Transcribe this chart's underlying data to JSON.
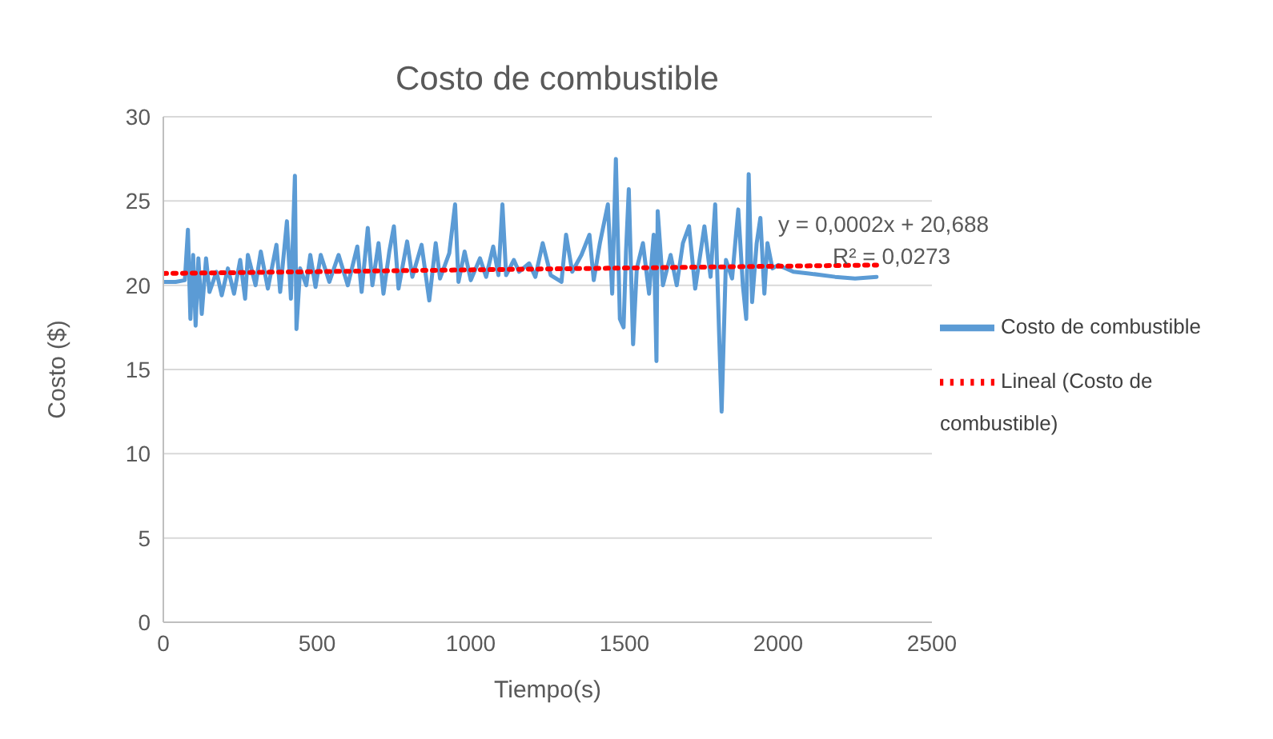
{
  "chart_data": {
    "type": "line",
    "title": "Costo de combustible",
    "xlabel": "Tiempo(s)",
    "ylabel": "Costo ($)",
    "xlim": [
      0,
      2500
    ],
    "xticks": [
      0,
      500,
      1000,
      1500,
      2000,
      2500
    ],
    "ylim": [
      0,
      30
    ],
    "yticks": [
      0,
      5,
      10,
      15,
      20,
      25,
      30
    ],
    "grid": "y",
    "legend": "right",
    "marker": "none",
    "annotations": [
      "y = 0,0002x + 20,688",
      "R² = 0,0273"
    ],
    "series": [
      {
        "name": "Costo de combustible",
        "color": "#5b9bd5",
        "line_style": "solid",
        "x": [
          0,
          40,
          70,
          80,
          88,
          97,
          105,
          114,
          125,
          139,
          150,
          173,
          190,
          210,
          230,
          250,
          266,
          275,
          300,
          317,
          340,
          368,
          380,
          402,
          415,
          428,
          433,
          445,
          465,
          478,
          495,
          512,
          540,
          570,
          600,
          631,
          645,
          665,
          680,
          700,
          716,
          735,
          750,
          765,
          793,
          810,
          840,
          865,
          886,
          900,
          930,
          949,
          960,
          980,
          1000,
          1030,
          1050,
          1073,
          1090,
          1103,
          1115,
          1140,
          1157,
          1190,
          1210,
          1234,
          1260,
          1295,
          1310,
          1330,
          1360,
          1386,
          1400,
          1420,
          1446,
          1460,
          1472,
          1485,
          1497,
          1505,
          1514,
          1528,
          1540,
          1560,
          1580,
          1595,
          1604,
          1608,
          1625,
          1650,
          1670,
          1690,
          1710,
          1730,
          1760,
          1780,
          1795,
          1808,
          1816,
          1830,
          1850,
          1870,
          1885,
          1896,
          1904,
          1915,
          1930,
          1942,
          1955,
          1965,
          1981,
          2000,
          2049,
          2100,
          2185,
          2250,
          2320
        ],
        "values": [
          20.2,
          20.2,
          20.3,
          23.3,
          18.0,
          21.8,
          17.6,
          21.6,
          18.3,
          21.6,
          19.6,
          20.8,
          19.4,
          21.0,
          19.5,
          21.5,
          19.2,
          21.8,
          20.0,
          22.0,
          19.8,
          22.4,
          19.6,
          23.8,
          19.2,
          26.5,
          17.4,
          21.0,
          20.0,
          21.8,
          19.9,
          21.8,
          20.2,
          21.8,
          20.0,
          22.3,
          19.6,
          23.4,
          20.0,
          22.5,
          19.5,
          22.0,
          23.5,
          19.8,
          22.6,
          20.5,
          22.4,
          19.1,
          22.5,
          20.4,
          21.9,
          24.8,
          20.2,
          22.0,
          20.3,
          21.6,
          20.5,
          22.3,
          20.6,
          24.8,
          20.6,
          21.5,
          20.8,
          21.3,
          20.5,
          22.5,
          20.6,
          20.2,
          23.0,
          20.8,
          21.8,
          23.0,
          20.3,
          22.5,
          24.8,
          19.5,
          27.5,
          18.0,
          17.5,
          22.0,
          25.7,
          16.5,
          21.0,
          22.5,
          19.5,
          23.0,
          15.5,
          24.4,
          20.0,
          21.8,
          20.0,
          22.5,
          23.5,
          19.8,
          23.5,
          20.5,
          24.8,
          17.0,
          12.5,
          21.5,
          20.4,
          24.5,
          20.0,
          18.0,
          26.6,
          19.0,
          22.5,
          24.0,
          19.5,
          22.5,
          21.0,
          21.2,
          20.8,
          20.7,
          20.5,
          20.4,
          20.5
        ]
      },
      {
        "name": "Lineal (Costo de combustible)",
        "color": "#ff0000",
        "line_style": "dotted",
        "x": [
          0,
          2320
        ],
        "values": [
          20.7,
          21.2
        ]
      }
    ]
  }
}
